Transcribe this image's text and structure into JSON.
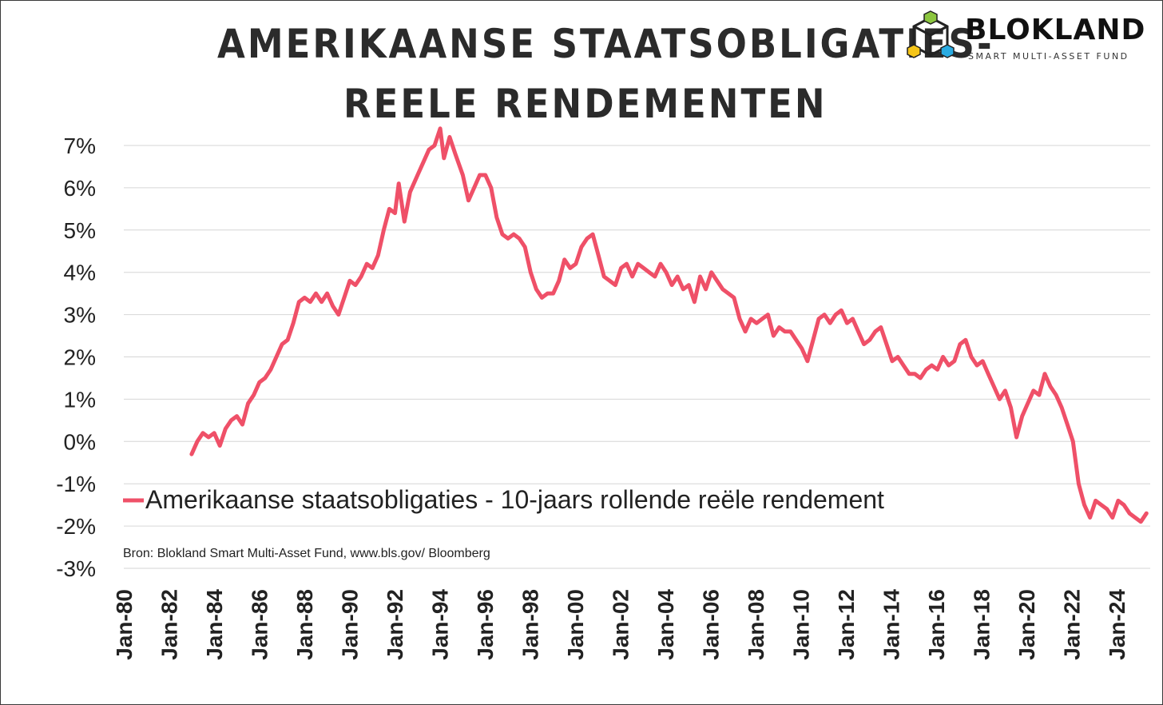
{
  "title_lines": [
    "AMERIKAANSE STAATSOBLIGATIES-",
    "REELE RENDEMENTEN"
  ],
  "logo": {
    "name": "BLOKLAND",
    "tagline": "SMART MULTI-ASSET FUND"
  },
  "source": "Bron: Blokland Smart Multi-Asset Fund, www.bls.gov/ Bloomberg",
  "colors": {
    "series": "#ef5068",
    "grid": "#d6d6d6",
    "text": "#222222"
  },
  "chart_data": {
    "type": "line",
    "title": "AMERIKAANSE STAATSOBLIGATIES- REELE RENDEMENTEN",
    "xlabel": "",
    "ylabel": "",
    "ylim": [
      -3,
      7
    ],
    "xlim": [
      "1980-01",
      "2025-06"
    ],
    "grid": true,
    "legend_position": "bottom-left",
    "y_tick_labels": [
      "7%",
      "6%",
      "5%",
      "4%",
      "3%",
      "2%",
      "1%",
      "0%",
      "-1%",
      "-2%",
      "-3%"
    ],
    "x_tick_labels": [
      "Jan-80",
      "Jan-82",
      "Jan-84",
      "Jan-86",
      "Jan-88",
      "Jan-90",
      "Jan-92",
      "Jan-94",
      "Jan-96",
      "Jan-98",
      "Jan-00",
      "Jan-02",
      "Jan-04",
      "Jan-06",
      "Jan-08",
      "Jan-10",
      "Jan-12",
      "Jan-14",
      "Jan-16",
      "Jan-18",
      "Jan-20",
      "Jan-22",
      "Jan-24"
    ],
    "series": [
      {
        "name": "Amerikaanse staatsobligaties - 10-jaars rollende reële rendement",
        "points": [
          [
            "1983-01",
            -0.3
          ],
          [
            "1983-04",
            0.0
          ],
          [
            "1983-07",
            0.2
          ],
          [
            "1983-10",
            0.1
          ],
          [
            "1984-01",
            0.2
          ],
          [
            "1984-04",
            -0.1
          ],
          [
            "1984-07",
            0.3
          ],
          [
            "1984-10",
            0.5
          ],
          [
            "1985-01",
            0.6
          ],
          [
            "1985-04",
            0.4
          ],
          [
            "1985-07",
            0.9
          ],
          [
            "1985-10",
            1.1
          ],
          [
            "1986-01",
            1.4
          ],
          [
            "1986-04",
            1.5
          ],
          [
            "1986-07",
            1.7
          ],
          [
            "1986-10",
            2.0
          ],
          [
            "1987-01",
            2.3
          ],
          [
            "1987-04",
            2.4
          ],
          [
            "1987-07",
            2.8
          ],
          [
            "1987-10",
            3.3
          ],
          [
            "1988-01",
            3.4
          ],
          [
            "1988-04",
            3.3
          ],
          [
            "1988-07",
            3.5
          ],
          [
            "1988-10",
            3.3
          ],
          [
            "1989-01",
            3.5
          ],
          [
            "1989-04",
            3.2
          ],
          [
            "1989-07",
            3.0
          ],
          [
            "1989-10",
            3.4
          ],
          [
            "1990-01",
            3.8
          ],
          [
            "1990-04",
            3.7
          ],
          [
            "1990-07",
            3.9
          ],
          [
            "1990-10",
            4.2
          ],
          [
            "1991-01",
            4.1
          ],
          [
            "1991-04",
            4.4
          ],
          [
            "1991-07",
            5.0
          ],
          [
            "1991-10",
            5.5
          ],
          [
            "1992-01",
            5.4
          ],
          [
            "1992-03",
            6.1
          ],
          [
            "1992-06",
            5.2
          ],
          [
            "1992-09",
            5.9
          ],
          [
            "1993-01",
            6.3
          ],
          [
            "1993-04",
            6.6
          ],
          [
            "1993-07",
            6.9
          ],
          [
            "1993-10",
            7.0
          ],
          [
            "1994-01",
            7.4
          ],
          [
            "1994-03",
            6.7
          ],
          [
            "1994-06",
            7.2
          ],
          [
            "1994-09",
            6.8
          ],
          [
            "1995-01",
            6.3
          ],
          [
            "1995-04",
            5.7
          ],
          [
            "1995-07",
            6.0
          ],
          [
            "1995-10",
            6.3
          ],
          [
            "1996-01",
            6.3
          ],
          [
            "1996-04",
            6.0
          ],
          [
            "1996-07",
            5.3
          ],
          [
            "1996-10",
            4.9
          ],
          [
            "1997-01",
            4.8
          ],
          [
            "1997-04",
            4.9
          ],
          [
            "1997-07",
            4.8
          ],
          [
            "1997-10",
            4.6
          ],
          [
            "1998-01",
            4.0
          ],
          [
            "1998-04",
            3.6
          ],
          [
            "1998-07",
            3.4
          ],
          [
            "1998-10",
            3.5
          ],
          [
            "1999-01",
            3.5
          ],
          [
            "1999-04",
            3.8
          ],
          [
            "1999-07",
            4.3
          ],
          [
            "1999-10",
            4.1
          ],
          [
            "2000-01",
            4.2
          ],
          [
            "2000-04",
            4.6
          ],
          [
            "2000-07",
            4.8
          ],
          [
            "2000-10",
            4.9
          ],
          [
            "2001-01",
            4.4
          ],
          [
            "2001-04",
            3.9
          ],
          [
            "2001-07",
            3.8
          ],
          [
            "2001-10",
            3.7
          ],
          [
            "2002-01",
            4.1
          ],
          [
            "2002-04",
            4.2
          ],
          [
            "2002-07",
            3.9
          ],
          [
            "2002-10",
            4.2
          ],
          [
            "2003-01",
            4.1
          ],
          [
            "2003-04",
            4.0
          ],
          [
            "2003-07",
            3.9
          ],
          [
            "2003-10",
            4.2
          ],
          [
            "2004-01",
            4.0
          ],
          [
            "2004-04",
            3.7
          ],
          [
            "2004-07",
            3.9
          ],
          [
            "2004-10",
            3.6
          ],
          [
            "2005-01",
            3.7
          ],
          [
            "2005-04",
            3.3
          ],
          [
            "2005-07",
            3.9
          ],
          [
            "2005-10",
            3.6
          ],
          [
            "2006-01",
            4.0
          ],
          [
            "2006-04",
            3.8
          ],
          [
            "2006-07",
            3.6
          ],
          [
            "2006-10",
            3.5
          ],
          [
            "2007-01",
            3.4
          ],
          [
            "2007-04",
            2.9
          ],
          [
            "2007-07",
            2.6
          ],
          [
            "2007-10",
            2.9
          ],
          [
            "2008-01",
            2.8
          ],
          [
            "2008-04",
            2.9
          ],
          [
            "2008-07",
            3.0
          ],
          [
            "2008-10",
            2.5
          ],
          [
            "2009-01",
            2.7
          ],
          [
            "2009-04",
            2.6
          ],
          [
            "2009-07",
            2.6
          ],
          [
            "2009-10",
            2.4
          ],
          [
            "2010-01",
            2.2
          ],
          [
            "2010-04",
            1.9
          ],
          [
            "2010-07",
            2.4
          ],
          [
            "2010-10",
            2.9
          ],
          [
            "2011-01",
            3.0
          ],
          [
            "2011-04",
            2.8
          ],
          [
            "2011-07",
            3.0
          ],
          [
            "2011-10",
            3.1
          ],
          [
            "2012-01",
            2.8
          ],
          [
            "2012-04",
            2.9
          ],
          [
            "2012-07",
            2.6
          ],
          [
            "2012-10",
            2.3
          ],
          [
            "2013-01",
            2.4
          ],
          [
            "2013-04",
            2.6
          ],
          [
            "2013-07",
            2.7
          ],
          [
            "2013-10",
            2.3
          ],
          [
            "2014-01",
            1.9
          ],
          [
            "2014-04",
            2.0
          ],
          [
            "2014-07",
            1.8
          ],
          [
            "2014-10",
            1.6
          ],
          [
            "2015-01",
            1.6
          ],
          [
            "2015-04",
            1.5
          ],
          [
            "2015-07",
            1.7
          ],
          [
            "2015-10",
            1.8
          ],
          [
            "2016-01",
            1.7
          ],
          [
            "2016-04",
            2.0
          ],
          [
            "2016-07",
            1.8
          ],
          [
            "2016-10",
            1.9
          ],
          [
            "2017-01",
            2.3
          ],
          [
            "2017-04",
            2.4
          ],
          [
            "2017-07",
            2.0
          ],
          [
            "2017-10",
            1.8
          ],
          [
            "2018-01",
            1.9
          ],
          [
            "2018-04",
            1.6
          ],
          [
            "2018-07",
            1.3
          ],
          [
            "2018-10",
            1.0
          ],
          [
            "2019-01",
            1.2
          ],
          [
            "2019-04",
            0.8
          ],
          [
            "2019-07",
            0.1
          ],
          [
            "2019-10",
            0.6
          ],
          [
            "2020-01",
            0.9
          ],
          [
            "2020-04",
            1.2
          ],
          [
            "2020-07",
            1.1
          ],
          [
            "2020-10",
            1.6
          ],
          [
            "2021-01",
            1.3
          ],
          [
            "2021-04",
            1.1
          ],
          [
            "2021-07",
            0.8
          ],
          [
            "2021-10",
            0.4
          ],
          [
            "2022-01",
            0.0
          ],
          [
            "2022-04",
            -1.0
          ],
          [
            "2022-07",
            -1.5
          ],
          [
            "2022-10",
            -1.8
          ],
          [
            "2023-01",
            -1.4
          ],
          [
            "2023-04",
            -1.5
          ],
          [
            "2023-07",
            -1.6
          ],
          [
            "2023-10",
            -1.8
          ],
          [
            "2024-01",
            -1.4
          ],
          [
            "2024-04",
            -1.5
          ],
          [
            "2024-07",
            -1.7
          ],
          [
            "2024-10",
            -1.8
          ],
          [
            "2025-01",
            -1.9
          ],
          [
            "2025-04",
            -1.7
          ]
        ]
      }
    ]
  }
}
